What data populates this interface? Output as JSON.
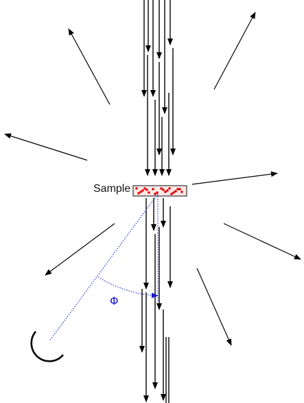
{
  "labels": {
    "sample": "Sample",
    "angle": "Φ"
  },
  "colors": {
    "beam": "#000000",
    "sample_border": "#333333",
    "sample_fill": "#ffe8e8",
    "particles": "#dd0000",
    "angle_guide": "#2233cc",
    "detector": "#000000"
  },
  "icons": [
    "incident-beam-arrow",
    "scattered-ray-arrow",
    "detector-arc",
    "angle-arc"
  ]
}
